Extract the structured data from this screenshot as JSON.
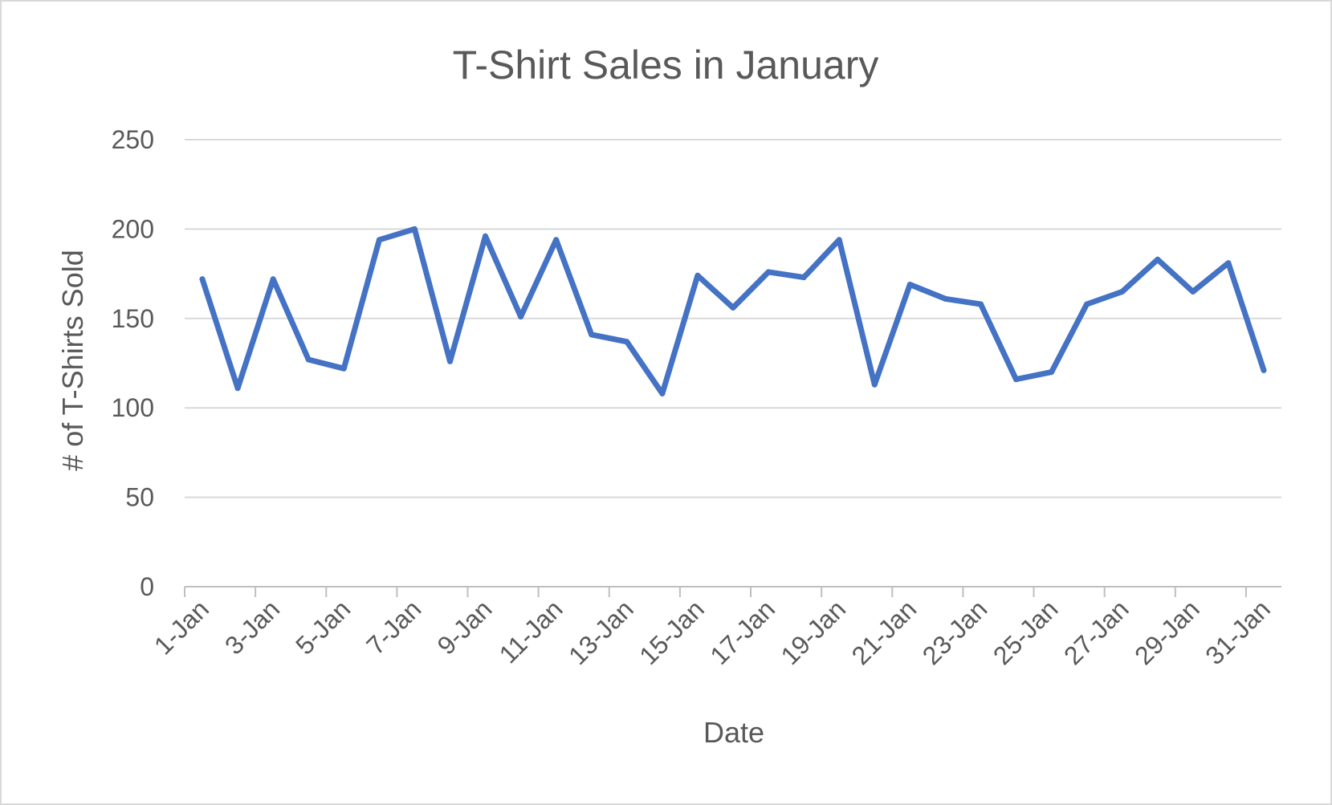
{
  "chart_data": {
    "type": "line",
    "title": "T-Shirt Sales in January",
    "xlabel": "Date",
    "ylabel": "# of T-Shirts Sold",
    "ylim": [
      0,
      250
    ],
    "yticks": [
      0,
      50,
      100,
      150,
      200,
      250
    ],
    "grid": true,
    "legend": "none",
    "x": [
      "1-Jan",
      "2-Jan",
      "3-Jan",
      "4-Jan",
      "5-Jan",
      "6-Jan",
      "7-Jan",
      "8-Jan",
      "9-Jan",
      "10-Jan",
      "11-Jan",
      "12-Jan",
      "13-Jan",
      "14-Jan",
      "15-Jan",
      "16-Jan",
      "17-Jan",
      "18-Jan",
      "19-Jan",
      "20-Jan",
      "21-Jan",
      "22-Jan",
      "23-Jan",
      "24-Jan",
      "25-Jan",
      "26-Jan",
      "27-Jan",
      "28-Jan",
      "29-Jan",
      "30-Jan",
      "31-Jan"
    ],
    "xtick_labels": [
      "1-Jan",
      "3-Jan",
      "5-Jan",
      "7-Jan",
      "9-Jan",
      "11-Jan",
      "13-Jan",
      "15-Jan",
      "17-Jan",
      "19-Jan",
      "21-Jan",
      "23-Jan",
      "25-Jan",
      "27-Jan",
      "29-Jan",
      "31-Jan"
    ],
    "series": [
      {
        "color": "#4472c4",
        "values": [
          172,
          111,
          172,
          127,
          122,
          194,
          200,
          126,
          196,
          151,
          194,
          141,
          137,
          108,
          174,
          156,
          176,
          173,
          194,
          113,
          169,
          161,
          158,
          116,
          120,
          158,
          165,
          183,
          165,
          181,
          121
        ]
      }
    ]
  }
}
